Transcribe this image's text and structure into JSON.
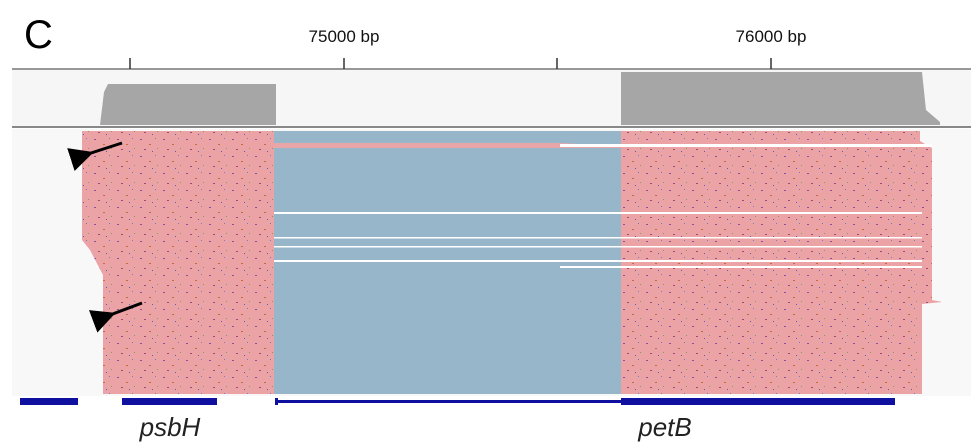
{
  "panel_label": "C",
  "ruler": {
    "labels": [
      "75000 bp",
      "76000 bp"
    ]
  },
  "genes": [
    {
      "label": "psbH"
    },
    {
      "label": "petB"
    }
  ]
}
